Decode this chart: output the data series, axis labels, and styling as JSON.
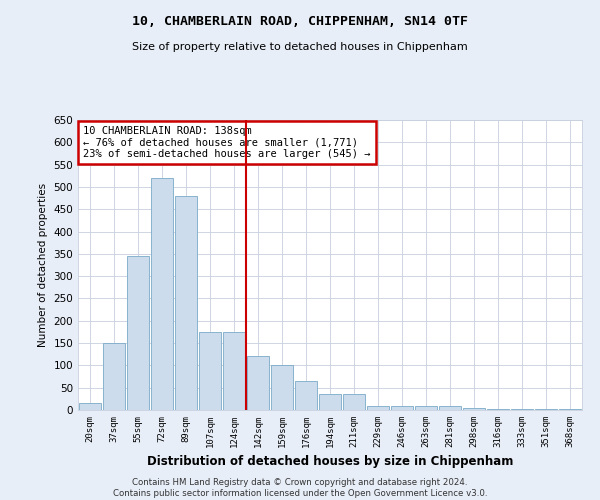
{
  "title": "10, CHAMBERLAIN ROAD, CHIPPENHAM, SN14 0TF",
  "subtitle": "Size of property relative to detached houses in Chippenham",
  "xlabel": "Distribution of detached houses by size in Chippenham",
  "ylabel": "Number of detached properties",
  "categories": [
    "20sqm",
    "37sqm",
    "55sqm",
    "72sqm",
    "89sqm",
    "107sqm",
    "124sqm",
    "142sqm",
    "159sqm",
    "176sqm",
    "194sqm",
    "211sqm",
    "229sqm",
    "246sqm",
    "263sqm",
    "281sqm",
    "298sqm",
    "316sqm",
    "333sqm",
    "351sqm",
    "368sqm"
  ],
  "values": [
    15,
    150,
    345,
    520,
    480,
    175,
    175,
    120,
    100,
    65,
    35,
    35,
    10,
    10,
    10,
    8,
    5,
    3,
    3,
    3,
    3
  ],
  "bar_color": "#ccdcec",
  "bar_edge_color": "#7aaac8",
  "marker_bin_index": 7,
  "marker_color": "#cc0000",
  "annotation_text": "10 CHAMBERLAIN ROAD: 138sqm\n← 76% of detached houses are smaller (1,771)\n23% of semi-detached houses are larger (545) →",
  "annotation_box_color": "#ffffff",
  "annotation_box_edge_color": "#cc0000",
  "footer_line1": "Contains HM Land Registry data © Crown copyright and database right 2024.",
  "footer_line2": "Contains public sector information licensed under the Open Government Licence v3.0.",
  "ylim": [
    0,
    650
  ],
  "yticks": [
    0,
    50,
    100,
    150,
    200,
    250,
    300,
    350,
    400,
    450,
    500,
    550,
    600,
    650
  ],
  "bg_color": "#e8eef8",
  "plot_bg_color": "#ffffff",
  "grid_color": "#c8d0de"
}
